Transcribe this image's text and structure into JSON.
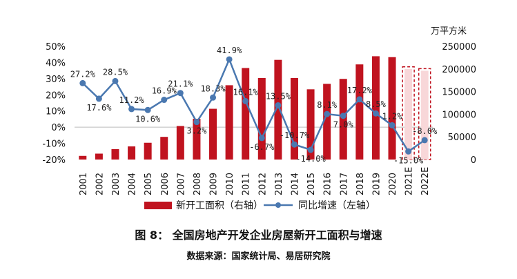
{
  "caption": "图 8： 全国房地产开发企业房屋新开工面积与增速",
  "source": "数据来源：国家统计局、易居研究院",
  "chart_data": {
    "type": "bar",
    "unit_label": "万平方米",
    "categories": [
      "2001",
      "2002",
      "2003",
      "2004",
      "2005",
      "2006",
      "2007",
      "2008",
      "2009",
      "2010",
      "2011",
      "2012",
      "2013",
      "2014",
      "2015",
      "2016",
      "2017",
      "2018",
      "2019",
      "2020",
      "2021E",
      "2022E"
    ],
    "series": [
      {
        "name": "新开工面积（右轴）",
        "type": "bar",
        "axis": "right",
        "color": "#c0131f",
        "values": [
          8,
          13,
          23,
          29,
          37,
          50,
          74,
          90,
          112,
          164,
          202,
          180,
          220,
          180,
          155,
          167,
          178,
          210,
          228,
          226,
          200,
          196
        ],
        "estimate_from": "2021E"
      },
      {
        "name": "同比增速（左轴）",
        "type": "line",
        "axis": "left",
        "color": "#4a78b0",
        "values": [
          27.2,
          17.6,
          28.5,
          11.2,
          10.6,
          16.9,
          21.1,
          3.2,
          18.3,
          41.9,
          16.1,
          -6.7,
          13.5,
          -10.7,
          -14.0,
          8.1,
          7.0,
          17.2,
          8.5,
          1.2,
          -15.0,
          -8.0
        ],
        "labels": [
          "27.2%",
          "17.6%",
          "28.5%",
          "11.2%",
          "10.6%",
          "16.9%",
          "21.1%",
          "3.2%",
          "18.3%",
          "41.9%",
          "16.1%",
          "-6.7%",
          "13.5%",
          "-10.7%",
          "-14.0%",
          "8.1%",
          "7.0%",
          "17.2%",
          "8.5%",
          "1.2%",
          "-15.0%",
          "-8.0%"
        ]
      }
    ],
    "left_axis": {
      "ticks": [
        "50%",
        "40%",
        "30%",
        "20%",
        "10%",
        "0%",
        "-10%",
        "-20%"
      ],
      "min": -20,
      "max": 50
    },
    "right_axis": {
      "ticks": [
        "250000",
        "200000",
        "150000",
        "100000",
        "50000",
        "0"
      ],
      "min": 0,
      "max": 250000
    },
    "legend": [
      "新开工面积（右轴）",
      "同比增速（左轴）"
    ],
    "legend_position": "bottom"
  }
}
